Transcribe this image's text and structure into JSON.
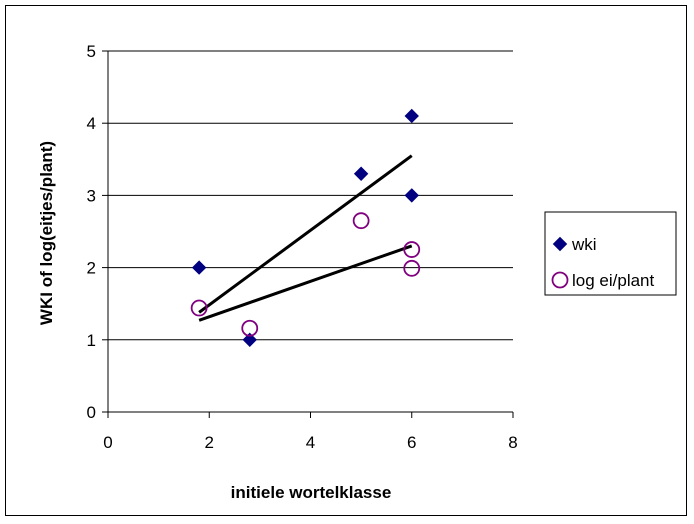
{
  "chart_data": {
    "type": "scatter",
    "xlabel": "initiele wortelklasse",
    "ylabel": "WKI  of log(eitjes/plant)",
    "xlim": [
      0,
      8
    ],
    "ylim": [
      0,
      5
    ],
    "xticks": [
      "0",
      "2",
      "4",
      "6",
      "8"
    ],
    "yticks": [
      "0",
      "1",
      "2",
      "3",
      "4",
      "5"
    ],
    "grid": "horizontal",
    "legend_position": "right",
    "series": [
      {
        "name": "wki",
        "marker": "diamond",
        "color": "#000080",
        "points": [
          [
            1.8,
            2.0
          ],
          [
            2.8,
            1.0
          ],
          [
            5.0,
            3.3
          ],
          [
            6.0,
            4.1
          ],
          [
            6.0,
            3.0
          ]
        ],
        "trendline": [
          [
            1.8,
            1.38
          ],
          [
            6.0,
            3.55
          ]
        ]
      },
      {
        "name": "log ei/plant",
        "marker": "open-circle",
        "color": "#800080",
        "points": [
          [
            1.8,
            1.44
          ],
          [
            2.8,
            1.16
          ],
          [
            5.0,
            2.65
          ],
          [
            6.0,
            2.25
          ],
          [
            6.0,
            1.99
          ]
        ],
        "trendline": [
          [
            1.8,
            1.27
          ],
          [
            6.0,
            2.3
          ]
        ]
      }
    ]
  }
}
